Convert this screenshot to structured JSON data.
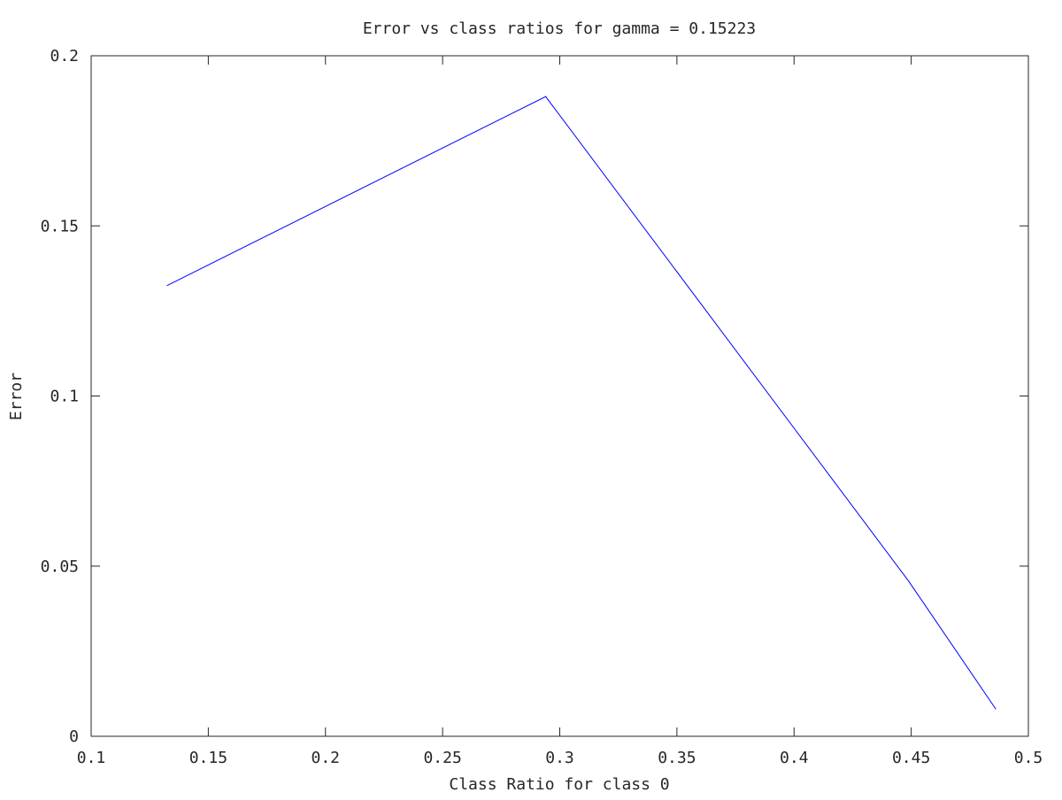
{
  "chart_data": {
    "type": "line",
    "title": "Error vs class ratios for gamma = 0.15223",
    "xlabel": "Class Ratio for class 0",
    "ylabel": "Error",
    "xlim": [
      0.1,
      0.5
    ],
    "ylim": [
      0,
      0.2
    ],
    "x_ticks": [
      {
        "value": 0.1,
        "label": "0.1"
      },
      {
        "value": 0.15,
        "label": "0.15"
      },
      {
        "value": 0.2,
        "label": "0.2"
      },
      {
        "value": 0.25,
        "label": "0.25"
      },
      {
        "value": 0.3,
        "label": "0.3"
      },
      {
        "value": 0.35,
        "label": "0.35"
      },
      {
        "value": 0.4,
        "label": "0.4"
      },
      {
        "value": 0.45,
        "label": "0.45"
      },
      {
        "value": 0.5,
        "label": "0.5"
      }
    ],
    "y_ticks": [
      {
        "value": 0,
        "label": "0"
      },
      {
        "value": 0.05,
        "label": "0.05"
      },
      {
        "value": 0.1,
        "label": "0.1"
      },
      {
        "value": 0.15,
        "label": "0.15"
      },
      {
        "value": 0.2,
        "label": "0.2"
      }
    ],
    "grid": false,
    "legend": "none",
    "series": [
      {
        "color": "#0000ff",
        "x": [
          0.1325,
          0.294,
          0.449,
          0.486
        ],
        "y": [
          0.1325,
          0.188,
          0.0455,
          0.0081
        ]
      }
    ]
  }
}
